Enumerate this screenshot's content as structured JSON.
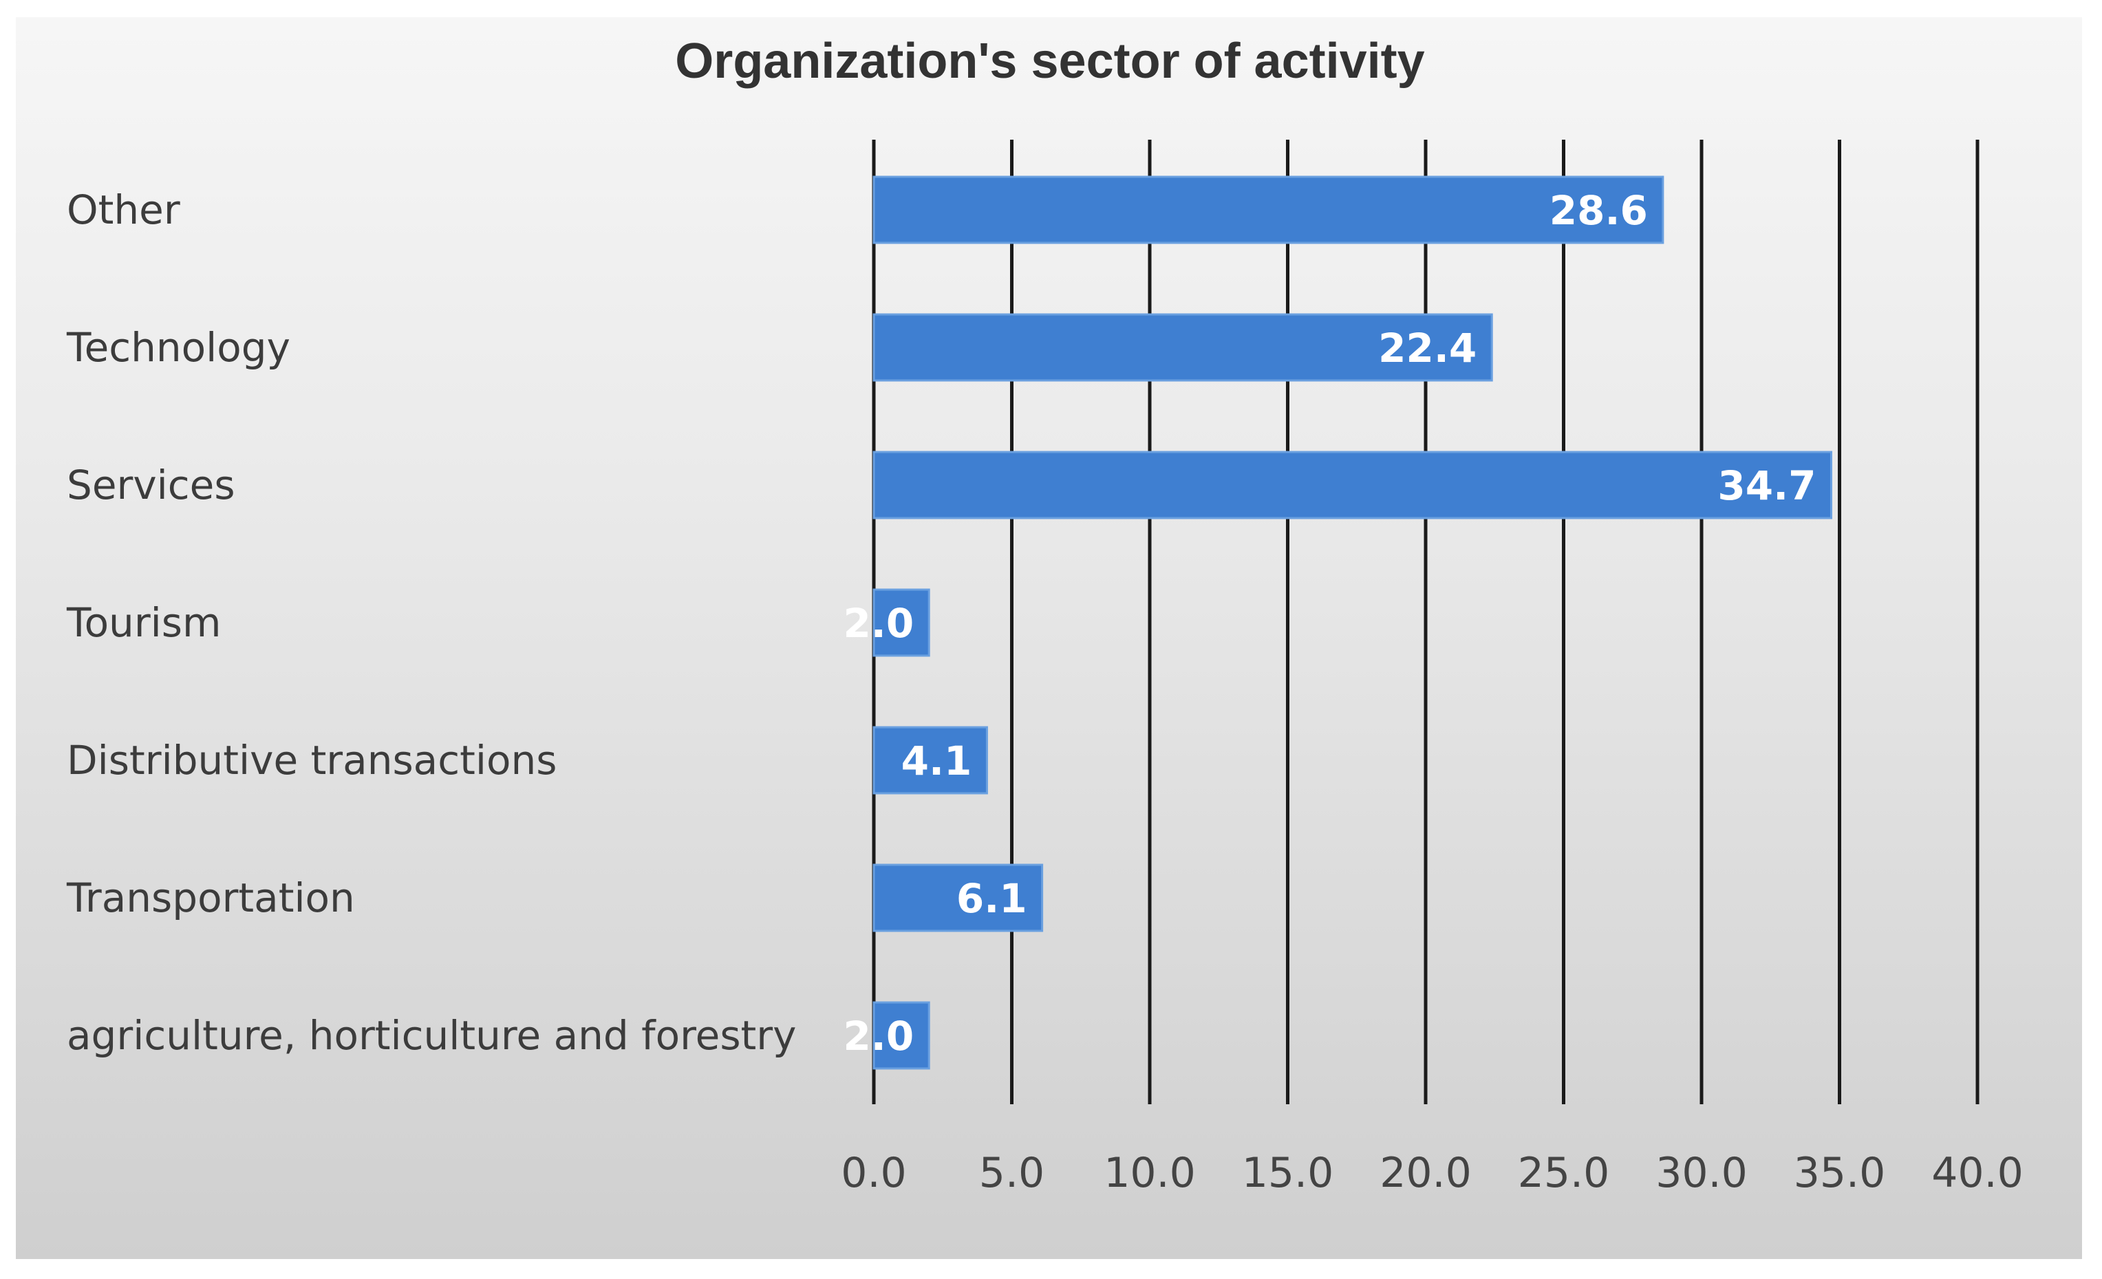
{
  "chart_data": {
    "type": "bar",
    "orientation": "horizontal",
    "title": "Organization's sector of activity",
    "categories": [
      "Other",
      "Technology",
      "Services",
      "Tourism",
      "Distributive transactions",
      "Transportation",
      "agriculture, horticulture and forestry"
    ],
    "values": [
      28.6,
      22.4,
      34.7,
      2.0,
      4.1,
      6.1,
      2.0
    ],
    "value_labels": [
      "28.6",
      "22.4",
      "34.7",
      "2.0",
      "4.1",
      "6.1",
      "2.0"
    ],
    "xlim": [
      0,
      40
    ],
    "x_ticks": [
      "0.0",
      "5.0",
      "10.0",
      "15.0",
      "20.0",
      "25.0",
      "30.0",
      "35.0",
      "40.0"
    ],
    "xlabel": "",
    "ylabel": "",
    "grid": true,
    "legend": "none",
    "bar_color": "#3f7fd1"
  }
}
